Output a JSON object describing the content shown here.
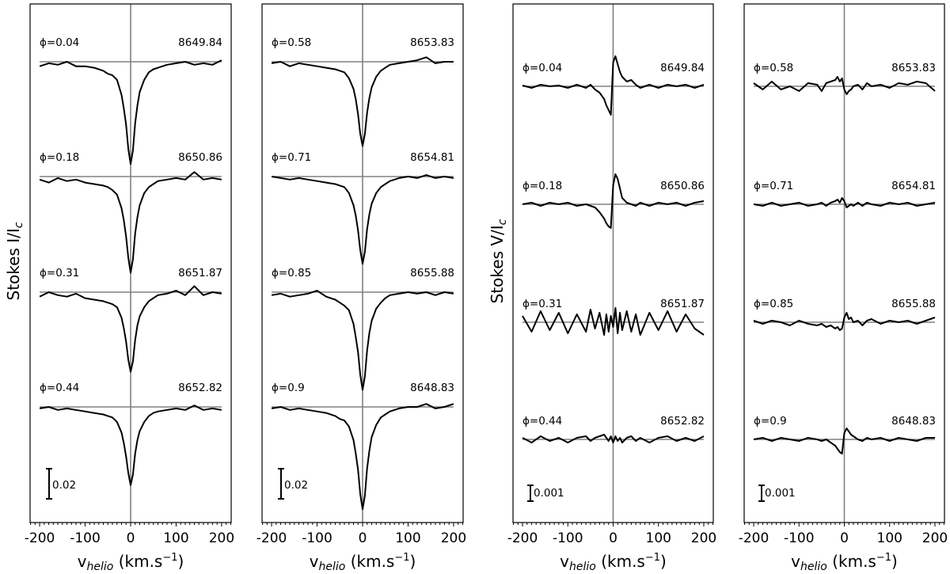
{
  "chart_data": [
    {
      "type": "line",
      "ylabel": {
        "main": "Stokes I/I",
        "sub": "c"
      },
      "xlabel": {
        "main": "v",
        "sub": "helio",
        "unit": " (km.s",
        "sup": "−1",
        "close": ")"
      },
      "xlim": [
        -221,
        221
      ],
      "xticks": [
        "-200",
        "-100",
        "0",
        "100",
        "200"
      ],
      "scale_bar": "0.02",
      "velocity": [
        -200,
        -180,
        -160,
        -140,
        -120,
        -100,
        -80,
        -60,
        -50,
        -40,
        -30,
        -20,
        -15,
        -10,
        -5,
        0,
        5,
        10,
        15,
        20,
        30,
        40,
        50,
        60,
        80,
        100,
        120,
        140,
        160,
        180,
        200
      ],
      "reference_level": 1,
      "spectra": [
        {
          "phase": "ϕ=0.04",
          "wavelength": "8649.84",
          "values": [
            0.997,
            0.999,
            0.998,
            1.0,
            0.997,
            0.997,
            0.996,
            0.994,
            0.992,
            0.991,
            0.988,
            0.978,
            0.969,
            0.958,
            0.942,
            0.932,
            0.941,
            0.959,
            0.971,
            0.98,
            0.988,
            0.993,
            0.995,
            0.996,
            0.998,
            0.999,
            1.0,
            0.998,
            0.999,
            0.998,
            1.001
          ]
        },
        {
          "phase": "ϕ=0.18",
          "wavelength": "8650.86",
          "values": [
            0.998,
            0.996,
            0.999,
            0.997,
            0.998,
            0.996,
            0.995,
            0.994,
            0.993,
            0.991,
            0.988,
            0.979,
            0.971,
            0.96,
            0.946,
            0.936,
            0.945,
            0.962,
            0.973,
            0.981,
            0.989,
            0.993,
            0.995,
            0.997,
            0.998,
            0.999,
            0.998,
            1.003,
            0.998,
            0.999,
            0.998
          ]
        },
        {
          "phase": "ϕ=0.31",
          "wavelength": "8651.87",
          "values": [
            0.997,
            1.0,
            0.998,
            0.997,
            0.999,
            0.996,
            0.995,
            0.994,
            0.993,
            0.992,
            0.99,
            0.983,
            0.976,
            0.967,
            0.955,
            0.947,
            0.954,
            0.968,
            0.978,
            0.984,
            0.99,
            0.994,
            0.996,
            0.998,
            0.999,
            1.001,
            0.998,
            1.004,
            0.998,
            1.0,
            0.999
          ]
        },
        {
          "phase": "ϕ=0.44",
          "wavelength": "8652.82",
          "values": [
            0.999,
            1.0,
            0.998,
            0.999,
            0.998,
            0.997,
            0.996,
            0.995,
            0.994,
            0.993,
            0.99,
            0.983,
            0.976,
            0.967,
            0.956,
            0.948,
            0.955,
            0.969,
            0.978,
            0.984,
            0.99,
            0.994,
            0.996,
            0.997,
            0.998,
            0.999,
            0.998,
            1.001,
            0.998,
            0.999,
            0.998
          ]
        }
      ]
    },
    {
      "type": "line",
      "xlabel": {
        "main": "v",
        "sub": "helio",
        "unit": " (km.s",
        "sup": "−1",
        "close": ")"
      },
      "xlim": [
        -221,
        221
      ],
      "xticks": [
        "-200",
        "-100",
        "0",
        "100",
        "200"
      ],
      "scale_bar": "0.02",
      "velocity": [
        -200,
        -180,
        -160,
        -140,
        -120,
        -100,
        -80,
        -60,
        -50,
        -40,
        -30,
        -20,
        -15,
        -10,
        -5,
        0,
        5,
        10,
        15,
        20,
        30,
        40,
        50,
        60,
        80,
        100,
        120,
        140,
        160,
        180,
        200
      ],
      "reference_level": 1,
      "spectra": [
        {
          "phase": "ϕ=0.58",
          "wavelength": "8653.83",
          "values": [
            0.999,
            1.0,
            0.997,
            0.999,
            0.998,
            0.997,
            0.996,
            0.995,
            0.994,
            0.993,
            0.989,
            0.982,
            0.975,
            0.965,
            0.952,
            0.944,
            0.952,
            0.966,
            0.976,
            0.983,
            0.99,
            0.994,
            0.996,
            0.998,
            0.999,
            1.0,
            1.001,
            1.003,
            0.999,
            1.0,
            1.0
          ]
        },
        {
          "phase": "ϕ=0.71",
          "wavelength": "8654.81",
          "values": [
            1.0,
            0.999,
            0.998,
            0.999,
            0.998,
            0.997,
            0.996,
            0.995,
            0.994,
            0.993,
            0.989,
            0.981,
            0.974,
            0.964,
            0.951,
            0.942,
            0.95,
            0.965,
            0.975,
            0.982,
            0.989,
            0.993,
            0.995,
            0.997,
            0.999,
            1.0,
            0.999,
            1.001,
            0.999,
            1.0,
            0.999
          ]
        },
        {
          "phase": "ϕ=0.85",
          "wavelength": "8655.88",
          "values": [
            0.998,
            0.999,
            0.997,
            0.998,
            0.999,
            1.001,
            0.997,
            0.995,
            0.993,
            0.991,
            0.988,
            0.979,
            0.97,
            0.96,
            0.945,
            0.935,
            0.944,
            0.961,
            0.973,
            0.981,
            0.989,
            0.993,
            0.996,
            0.998,
            0.999,
            1.0,
            0.999,
            1.0,
            0.998,
            1.0,
            0.999
          ]
        },
        {
          "phase": "ϕ=0.9",
          "wavelength": "8648.83",
          "values": [
            0.999,
            1.0,
            0.998,
            0.999,
            0.998,
            0.997,
            0.996,
            0.994,
            0.992,
            0.991,
            0.987,
            0.978,
            0.969,
            0.958,
            0.942,
            0.932,
            0.941,
            0.959,
            0.971,
            0.98,
            0.988,
            0.993,
            0.995,
            0.997,
            0.999,
            1.0,
            1.0,
            1.002,
            0.999,
            1.0,
            1.002
          ]
        }
      ]
    },
    {
      "type": "line",
      "ylabel": {
        "main": "Stokes V/I",
        "sub": "c"
      },
      "xlabel": {
        "main": "v",
        "sub": "helio",
        "unit": " (km.s",
        "sup": "−1",
        "close": ")"
      },
      "xlim": [
        -221,
        221
      ],
      "xticks": [
        "-200",
        "-100",
        "0",
        "100",
        "200"
      ],
      "scale_bar": "0.001",
      "velocity": [
        -200,
        -180,
        -160,
        -140,
        -120,
        -100,
        -80,
        -60,
        -50,
        -40,
        -30,
        -20,
        -15,
        -10,
        -5,
        0,
        5,
        10,
        15,
        20,
        30,
        40,
        50,
        60,
        80,
        100,
        120,
        140,
        160,
        180,
        200
      ],
      "reference_level": 0,
      "spectra": [
        {
          "phase": "ϕ=0.04",
          "wavelength": "8649.84",
          "values": [
            5e-05,
            -0.0001,
            0.0001,
            0,
            5e-05,
            -0.0001,
            0.0001,
            -0.0001,
            0.0001,
            -0.0002,
            -0.0004,
            -0.0008,
            -0.0012,
            -0.0015,
            -0.0018,
            0.0015,
            0.0019,
            0.0014,
            0.0009,
            0.0006,
            0.0003,
            0.0004,
            0.0001,
            -0.0001,
            0.0001,
            -0.0001,
            0.0001,
            0,
            0.0001,
            -0.0001,
            0.0001
          ]
        },
        {
          "phase": "ϕ=0.18",
          "wavelength": "8650.86",
          "values": [
            0,
            0.0001,
            -0.0001,
            0.0001,
            0,
            0.0001,
            -0.0001,
            0,
            -0.0001,
            -0.0002,
            -0.0005,
            -0.0009,
            -0.0012,
            -0.0014,
            -0.0015,
            0.0012,
            0.0019,
            0.0016,
            0.001,
            0.0004,
            0.0001,
            0,
            -0.0001,
            0.0001,
            -0.0001,
            0.0001,
            0,
            0.0001,
            -0.0001,
            0.0001,
            0.0002
          ]
        },
        {
          "phase": "ϕ=0.31",
          "wavelength": "8651.87",
          "values": [
            0.0004,
            -0.0006,
            0.0007,
            -0.0005,
            0.0006,
            -0.0007,
            0.0005,
            -0.0006,
            0.0008,
            -0.0004,
            0.0006,
            -0.0008,
            0.0005,
            -0.0006,
            0.0004,
            -0.0003,
            0.0009,
            -0.0007,
            0.0006,
            -0.0005,
            0.0007,
            -0.0006,
            0.0005,
            -0.0008,
            0.0006,
            -0.0005,
            0.0007,
            -0.0006,
            0.0005,
            -0.0004,
            -0.0008
          ]
        },
        {
          "phase": "ϕ=0.44",
          "wavelength": "8652.82",
          "values": [
            0.0001,
            -0.0002,
            0.0002,
            -0.0001,
            0.0001,
            -0.0002,
            0.0001,
            0.0002,
            -0.0001,
            0.0001,
            0.0002,
            0.0003,
            0.0001,
            -0.0001,
            0.0002,
            -0.0002,
            0.0002,
            -0.0001,
            0.0001,
            -0.0002,
            0.0001,
            0.0002,
            -0.0001,
            0.0001,
            -0.0002,
            0.0001,
            0.0002,
            -0.0001,
            0.0001,
            -0.0001,
            0.0002
          ]
        }
      ]
    },
    {
      "type": "line",
      "xlabel": {
        "main": "v",
        "sub": "helio",
        "unit": " (km.s",
        "sup": "−1",
        "close": ")"
      },
      "xlim": [
        -221,
        221
      ],
      "xticks": [
        "-200",
        "-100",
        "0",
        "100",
        "200"
      ],
      "scale_bar": "0.001",
      "velocity": [
        -200,
        -180,
        -160,
        -140,
        -120,
        -100,
        -80,
        -60,
        -50,
        -40,
        -30,
        -20,
        -15,
        -10,
        -5,
        0,
        5,
        10,
        15,
        20,
        30,
        40,
        50,
        60,
        80,
        100,
        120,
        140,
        160,
        180,
        200
      ],
      "reference_level": 0,
      "spectra": [
        {
          "phase": "ϕ=0.58",
          "wavelength": "8653.83",
          "values": [
            0.0002,
            -0.0002,
            0.0003,
            -0.0002,
            0,
            -0.0003,
            0.0002,
            0.0001,
            -0.0003,
            0.0002,
            0.0003,
            0.0004,
            0.0006,
            0.0003,
            0.0005,
            -0.0002,
            -0.0005,
            -0.0003,
            -0.0002,
            0,
            0.0001,
            -0.0002,
            0.0002,
            0,
            0.0001,
            -0.0001,
            0.0002,
            0.0001,
            0.0003,
            0.0002,
            -0.0003
          ]
        },
        {
          "phase": "ϕ=0.71",
          "wavelength": "8654.81",
          "values": [
            0,
            -0.0001,
            0.0001,
            -0.0001,
            0,
            0.0001,
            -0.0001,
            0,
            0.0001,
            -0.0001,
            0.0001,
            0.0002,
            0.0003,
            0.0001,
            0.0004,
            0.0002,
            -0.0002,
            -0.0001,
            0,
            -0.0001,
            0.0001,
            -0.0001,
            0.0001,
            0,
            -0.0001,
            0.0001,
            0,
            0.0001,
            -0.0001,
            0,
            0.0001
          ]
        },
        {
          "phase": "ϕ=0.85",
          "wavelength": "8655.88",
          "values": [
            0.0001,
            -0.0001,
            0.0001,
            0,
            -0.0002,
            0.0001,
            -0.0001,
            -0.0002,
            -0.0001,
            -0.0003,
            -0.0002,
            -0.0004,
            -0.0003,
            -0.0005,
            -0.0004,
            0.0003,
            0.0006,
            0.0002,
            0.0003,
            0,
            0.0001,
            -0.0002,
            0.0001,
            0.0002,
            -0.0001,
            0.0001,
            0,
            0.0001,
            -0.0001,
            0.0001,
            0.0003
          ]
        },
        {
          "phase": "ϕ=0.9",
          "wavelength": "8648.83",
          "values": [
            0,
            0.0001,
            -0.0001,
            0.0001,
            0,
            -0.0001,
            0.0001,
            0,
            -0.0001,
            0,
            -0.0002,
            -0.0004,
            -0.0006,
            -0.0008,
            -0.0009,
            0.0004,
            0.0007,
            0.0005,
            0.0003,
            0.0002,
            0,
            -0.0001,
            0.0001,
            0,
            0.0001,
            -0.0001,
            0.0001,
            0,
            -0.0001,
            0.0001,
            0.0001
          ]
        }
      ]
    }
  ],
  "colors": {
    "trace": "#000000",
    "reference": "#808080"
  }
}
